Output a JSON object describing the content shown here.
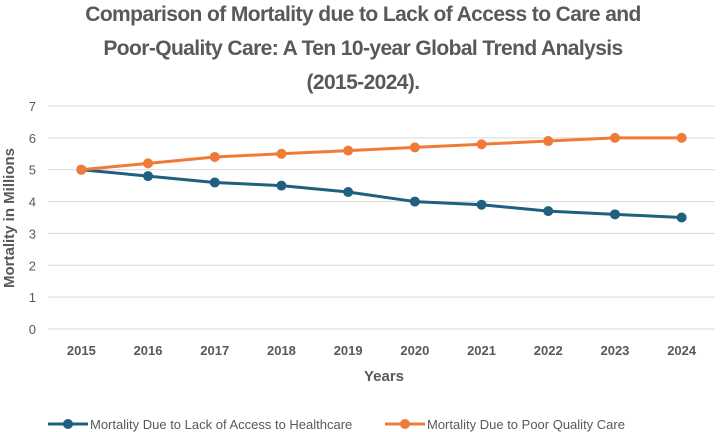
{
  "chart_data": {
    "type": "line",
    "title_lines": [
      "Comparison of Mortality due to Lack of Access to Care and",
      "Poor-Quality Care: A Ten 10-year Global Trend Analysis",
      "(2015-2024)."
    ],
    "xlabel": "Years",
    "ylabel": "Mortality in Millions",
    "categories": [
      "2015",
      "2016",
      "2017",
      "2018",
      "2019",
      "2020",
      "2021",
      "2022",
      "2023",
      "2024"
    ],
    "ylim": [
      0,
      7
    ],
    "yticks": [
      "0",
      "1",
      "2",
      "3",
      "4",
      "5",
      "6",
      "7"
    ],
    "grid": true,
    "legend_position": "bottom",
    "series": [
      {
        "name": "Mortality Due to Lack of Access to Healthcare",
        "color": "#1f5f7f",
        "values": [
          5.0,
          4.8,
          4.6,
          4.5,
          4.3,
          4.0,
          3.9,
          3.7,
          3.6,
          3.5
        ]
      },
      {
        "name": "Mortality Due to Poor Quality Care",
        "color": "#ef7b36",
        "values": [
          5.0,
          5.2,
          5.4,
          5.5,
          5.6,
          5.7,
          5.8,
          5.9,
          6.0,
          6.0
        ]
      }
    ]
  }
}
